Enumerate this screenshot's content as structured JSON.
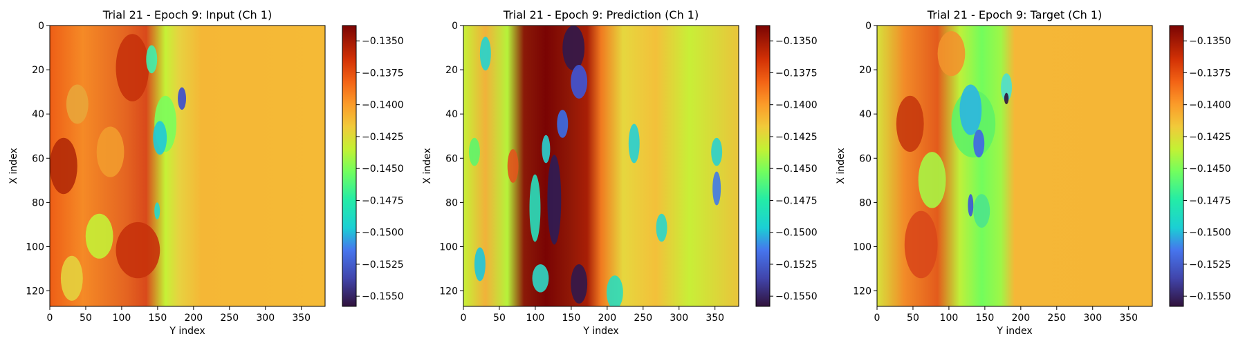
{
  "chart_data": [
    {
      "type": "heatmap",
      "title": "Trial 21 - Epoch 9: Input (Ch 1)",
      "xlabel": "Y index",
      "ylabel": "X index",
      "x_ticks": [
        0,
        50,
        100,
        150,
        200,
        250,
        300,
        350
      ],
      "y_ticks": [
        0,
        20,
        40,
        60,
        80,
        100,
        120
      ],
      "xlim": [
        0,
        383
      ],
      "ylim": [
        127,
        0
      ],
      "colormap": "turbo",
      "colorbar": {
        "ticks": [
          -0.135,
          -0.1375,
          -0.14,
          -0.1425,
          -0.145,
          -0.1475,
          -0.15,
          -0.1525,
          -0.155
        ],
        "tick_labels": [
          "−0.1350",
          "−0.1375",
          "−0.1400",
          "−0.1425",
          "−0.1450",
          "−0.1475",
          "−0.1500",
          "−0.1525",
          "−0.1550"
        ],
        "range": [
          -0.1558,
          -0.1338
        ]
      }
    },
    {
      "type": "heatmap",
      "title": "Trial 21 - Epoch 9: Prediction (Ch 1)",
      "xlabel": "Y index",
      "ylabel": "X index",
      "x_ticks": [
        0,
        50,
        100,
        150,
        200,
        250,
        300,
        350
      ],
      "y_ticks": [
        0,
        20,
        40,
        60,
        80,
        100,
        120
      ],
      "xlim": [
        0,
        383
      ],
      "ylim": [
        127,
        0
      ],
      "colormap": "turbo",
      "colorbar": {
        "ticks": [
          -0.135,
          -0.1375,
          -0.14,
          -0.1425,
          -0.145,
          -0.1475,
          -0.15,
          -0.1525,
          -0.155
        ],
        "tick_labels": [
          "−0.1350",
          "−0.1375",
          "−0.1400",
          "−0.1425",
          "−0.1450",
          "−0.1475",
          "−0.1500",
          "−0.1525",
          "−0.1550"
        ],
        "range": [
          -0.1558,
          -0.1338
        ]
      }
    },
    {
      "type": "heatmap",
      "title": "Trial 21 - Epoch 9: Target (Ch 1)",
      "xlabel": "Y index",
      "ylabel": "X index",
      "x_ticks": [
        0,
        50,
        100,
        150,
        200,
        250,
        300,
        350
      ],
      "y_ticks": [
        0,
        20,
        40,
        60,
        80,
        100,
        120
      ],
      "xlim": [
        0,
        383
      ],
      "ylim": [
        127,
        0
      ],
      "colormap": "turbo",
      "colorbar": {
        "ticks": [
          -0.135,
          -0.1375,
          -0.14,
          -0.1425,
          -0.145,
          -0.1475,
          -0.15,
          -0.1525,
          -0.155
        ],
        "tick_labels": [
          "−0.1350",
          "−0.1375",
          "−0.1400",
          "−0.1425",
          "−0.1450",
          "−0.1475",
          "−0.1500",
          "−0.1525",
          "−0.1550"
        ],
        "range": [
          -0.1558,
          -0.1338
        ]
      }
    }
  ]
}
